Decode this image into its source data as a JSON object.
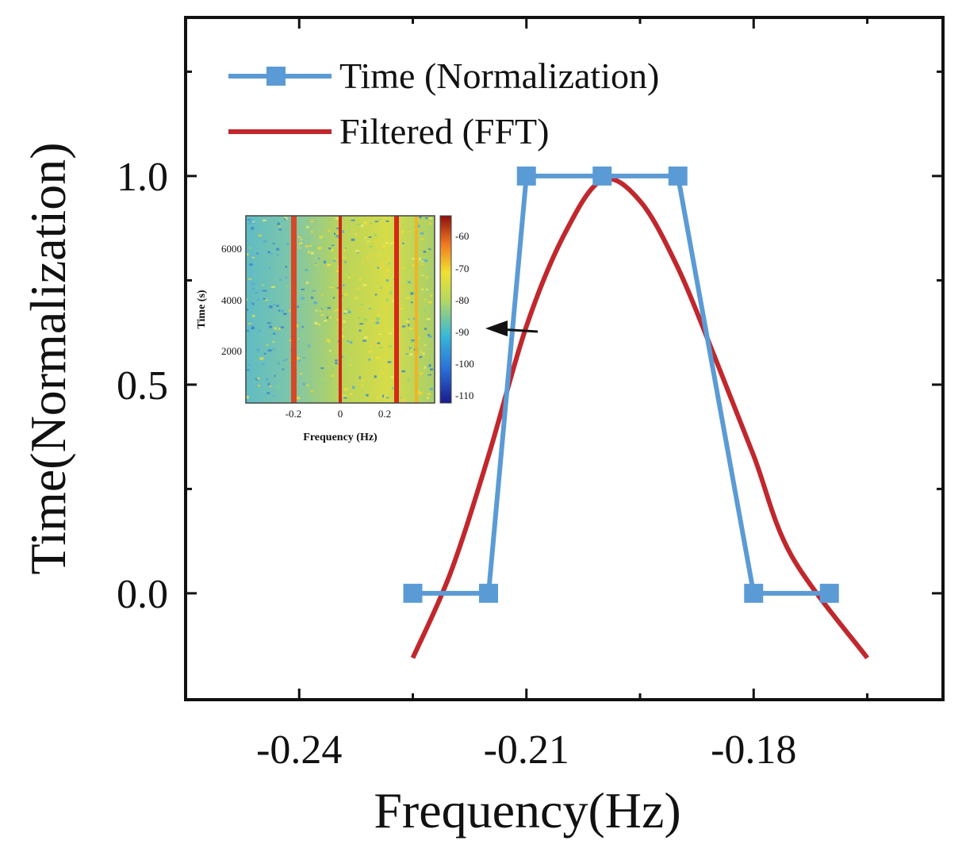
{
  "chart_data": {
    "type": "line",
    "xlabel": "Frequency(Hz)",
    "ylabel": "Time(Normalization)",
    "xlim": [
      -0.255,
      -0.155
    ],
    "ylim": [
      -0.255,
      1.38
    ],
    "xticks": [
      -0.24,
      -0.21,
      -0.18
    ],
    "xtick_labels": [
      "-0.24",
      "-0.21",
      "-0.18"
    ],
    "xticks_minor": [
      -0.255,
      -0.225,
      -0.195,
      -0.165
    ],
    "yticks": [
      0.0,
      0.5,
      1.0
    ],
    "ytick_labels": [
      "0.0",
      "0.5",
      "1.0"
    ],
    "yticks_minor": [
      0.25,
      0.75,
      1.25
    ],
    "legend_position": "top-left",
    "series": [
      {
        "name": "Time (Normalization)",
        "color": "#5b9bd5",
        "marker": "square",
        "x": [
          -0.225,
          -0.215,
          -0.21,
          -0.2,
          -0.19,
          -0.18,
          -0.17
        ],
        "y": [
          0,
          0,
          1,
          1,
          1,
          0,
          0
        ]
      },
      {
        "name": "Filtered (FFT)",
        "color": "#c0282d",
        "marker": "none",
        "x": [
          -0.225,
          -0.22,
          -0.215,
          -0.21,
          -0.205,
          -0.2,
          -0.195,
          -0.19,
          -0.185,
          -0.18,
          -0.175,
          -0.165
        ],
        "y": [
          -0.155,
          0.05,
          0.33,
          0.64,
          0.86,
          0.99,
          0.94,
          0.78,
          0.56,
          0.33,
          0.09,
          -0.155
        ]
      }
    ],
    "inset": {
      "type": "heatmap",
      "xlabel": "Frequency (Hz)",
      "ylabel": "Time (s)",
      "xticks": [
        "-0.2",
        "0",
        "0.2"
      ],
      "yticks": [
        "2000",
        "4000",
        "6000"
      ],
      "colorbar_ticks": [
        "-60",
        "-70",
        "-80",
        "-90",
        "-100",
        "-110"
      ]
    }
  }
}
